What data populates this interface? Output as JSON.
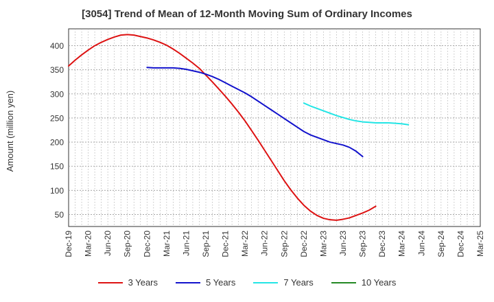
{
  "chart_data": {
    "type": "line",
    "title": "[3054]  Trend of Mean of 12-Month Moving Sum of Ordinary Incomes",
    "xlabel": "",
    "ylabel": "Amount (million yen)",
    "ylim": [
      25,
      435
    ],
    "yticks": [
      50,
      100,
      150,
      200,
      250,
      300,
      350,
      400
    ],
    "xticks": [
      "Dec-19",
      "Mar-20",
      "Jun-20",
      "Sep-20",
      "Dec-20",
      "Mar-21",
      "Jun-21",
      "Sep-21",
      "Dec-21",
      "Mar-22",
      "Jun-22",
      "Sep-22",
      "Dec-22",
      "Mar-23",
      "Jun-23",
      "Sep-23",
      "Dec-23",
      "Mar-24",
      "Jun-24",
      "Sep-24",
      "Dec-24",
      "Mar-25"
    ],
    "grid": true,
    "legend_position": "bottom",
    "series": [
      {
        "name": "3 Years",
        "color": "#dd1111",
        "x_start_index": 0,
        "values": [
          358,
          370,
          381,
          391,
          400,
          407,
          413,
          418,
          422,
          423,
          422,
          419,
          416,
          412,
          407,
          401,
          393,
          384,
          374,
          364,
          353,
          339,
          325,
          310,
          295,
          279,
          262,
          244,
          224,
          204,
          183,
          162,
          141,
          120,
          101,
          84,
          69,
          57,
          48,
          42,
          39,
          38,
          40,
          43,
          48,
          53,
          59,
          67
        ]
      },
      {
        "name": "5 Years",
        "color": "#1111cc",
        "x_start_index": 12,
        "values": [
          355,
          354,
          354,
          354,
          354,
          353,
          351,
          348,
          345,
          341,
          336,
          330,
          323,
          316,
          309,
          302,
          294,
          285,
          276,
          267,
          258,
          249,
          240,
          231,
          222,
          215,
          210,
          205,
          200,
          197,
          194,
          189,
          181,
          170
        ]
      },
      {
        "name": "7 Years",
        "color": "#22e5e5",
        "x_start_index": 36,
        "values": [
          281,
          275,
          270,
          265,
          260,
          255,
          251,
          247,
          244,
          242,
          241,
          240,
          240,
          240,
          239,
          238,
          236
        ]
      },
      {
        "name": "10 Years",
        "color": "#228822",
        "x_start_index": 0,
        "values": []
      }
    ]
  }
}
